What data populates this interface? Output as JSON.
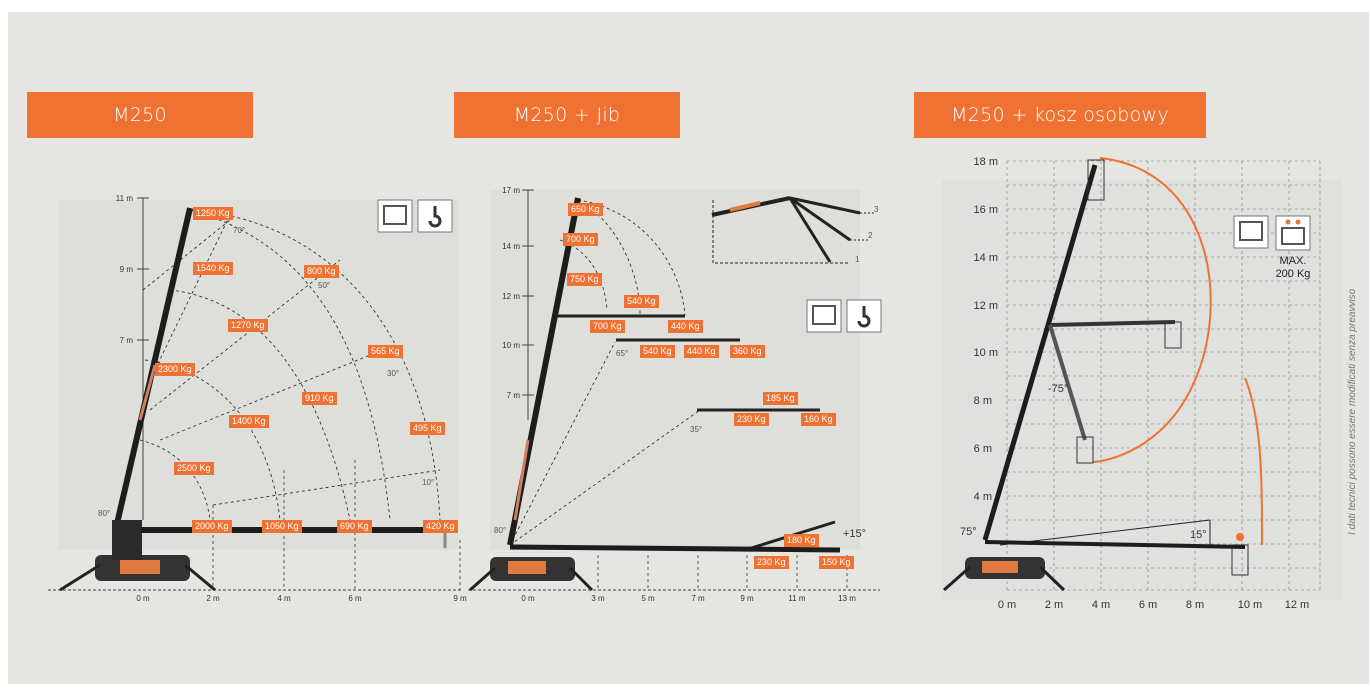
{
  "tabs": [
    "M250",
    "M250 + Jib",
    "M250 + kosz osobowy"
  ],
  "chart1": {
    "y_ticks": [
      "11 m",
      "9 m",
      "7 m"
    ],
    "x_ticks": [
      "0 m",
      "2 m",
      "4 m",
      "6 m",
      "9 m"
    ],
    "angles": [
      "70°",
      "50°",
      "30°",
      "10°",
      "80°"
    ],
    "loads": [
      "1250 Kg",
      "1540 Kg",
      "800 Kg",
      "1270 Kg",
      "565 Kg",
      "2300 Kg",
      "910 Kg",
      "1400 Kg",
      "495 Kg",
      "2500 Kg",
      "2000 Kg",
      "1050 Kg",
      "690 Kg",
      "420 Kg"
    ]
  },
  "chart2": {
    "y_ticks": [
      "17 m",
      "14 m",
      "12 m",
      "10 m",
      "7 m"
    ],
    "x_ticks": [
      "0 m",
      "3 m",
      "5 m",
      "7 m",
      "9 m",
      "11 m",
      "13 m"
    ],
    "angles": [
      "65°",
      "35°",
      "80°",
      "+15°"
    ],
    "jib_positions": [
      "3",
      "2",
      "1"
    ],
    "loads": [
      "650 Kg",
      "700 Kg",
      "750 Kg",
      "540 Kg",
      "700 Kg",
      "440 Kg",
      "540 Kg",
      "440 Kg",
      "360 Kg",
      "185 Kg",
      "230 Kg",
      "160 Kg",
      "180 Kg",
      "230 Kg",
      "150 Kg"
    ]
  },
  "chart3": {
    "y_ticks": [
      "18 m",
      "16 m",
      "14 m",
      "12 m",
      "10 m",
      "8 m",
      "6 m",
      "4 m"
    ],
    "x_ticks": [
      "0 m",
      "2 m",
      "4 m",
      "6 m",
      "8 m",
      "10 m",
      "12 m"
    ],
    "angles": [
      "75°",
      "-75°",
      "15°"
    ],
    "max_weight": [
      "MAX.",
      "200 Kg"
    ]
  },
  "side_note": "I dati tecnici possono essere modificati senza preavviso"
}
